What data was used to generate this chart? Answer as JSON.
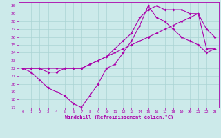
{
  "xlabel": "Windchill (Refroidissement éolien,°C)",
  "bg_color": "#cceaea",
  "grid_color": "#aad4d4",
  "line_color": "#aa00aa",
  "xlim": [
    -0.5,
    23.5
  ],
  "ylim": [
    17,
    30.5
  ],
  "yticks": [
    17,
    18,
    19,
    20,
    21,
    22,
    23,
    24,
    25,
    26,
    27,
    28,
    29,
    30
  ],
  "xticks": [
    0,
    1,
    2,
    3,
    4,
    5,
    6,
    7,
    8,
    9,
    10,
    11,
    12,
    13,
    14,
    15,
    16,
    17,
    18,
    19,
    20,
    21,
    22,
    23
  ],
  "line1_x": [
    0,
    1,
    2,
    3,
    4,
    5,
    6,
    7,
    8,
    9,
    10,
    11,
    12,
    13,
    14,
    15,
    16,
    17,
    18,
    19,
    20,
    21,
    22,
    23
  ],
  "line1_y": [
    22,
    22,
    22,
    22,
    22,
    22,
    22,
    22,
    22.5,
    23,
    23.5,
    24,
    24.5,
    25,
    25.5,
    26,
    26.5,
    27,
    27.5,
    28,
    28.5,
    29,
    24.5,
    24.5
  ],
  "line2_x": [
    0,
    1,
    2,
    3,
    4,
    5,
    6,
    7,
    8,
    9,
    10,
    11,
    12,
    13,
    14,
    15,
    16,
    17,
    18,
    19,
    20,
    21,
    22,
    23
  ],
  "line2_y": [
    22,
    21.5,
    20.5,
    19.5,
    19,
    18.5,
    17.5,
    17,
    18.5,
    20,
    22,
    22.5,
    24,
    25.5,
    27.5,
    30,
    28.5,
    28,
    27,
    26,
    25.5,
    25,
    24,
    24.5
  ],
  "line3_x": [
    0,
    1,
    2,
    3,
    4,
    5,
    6,
    7,
    8,
    9,
    10,
    11,
    12,
    13,
    14,
    15,
    16,
    17,
    18,
    19,
    20,
    21,
    22,
    23
  ],
  "line3_y": [
    22,
    22,
    22,
    21.5,
    21.5,
    22,
    22,
    22,
    22.5,
    23,
    23.5,
    24.5,
    25.5,
    26.5,
    28.5,
    29.5,
    30,
    29.5,
    29.5,
    29.5,
    29,
    29,
    27,
    26
  ]
}
